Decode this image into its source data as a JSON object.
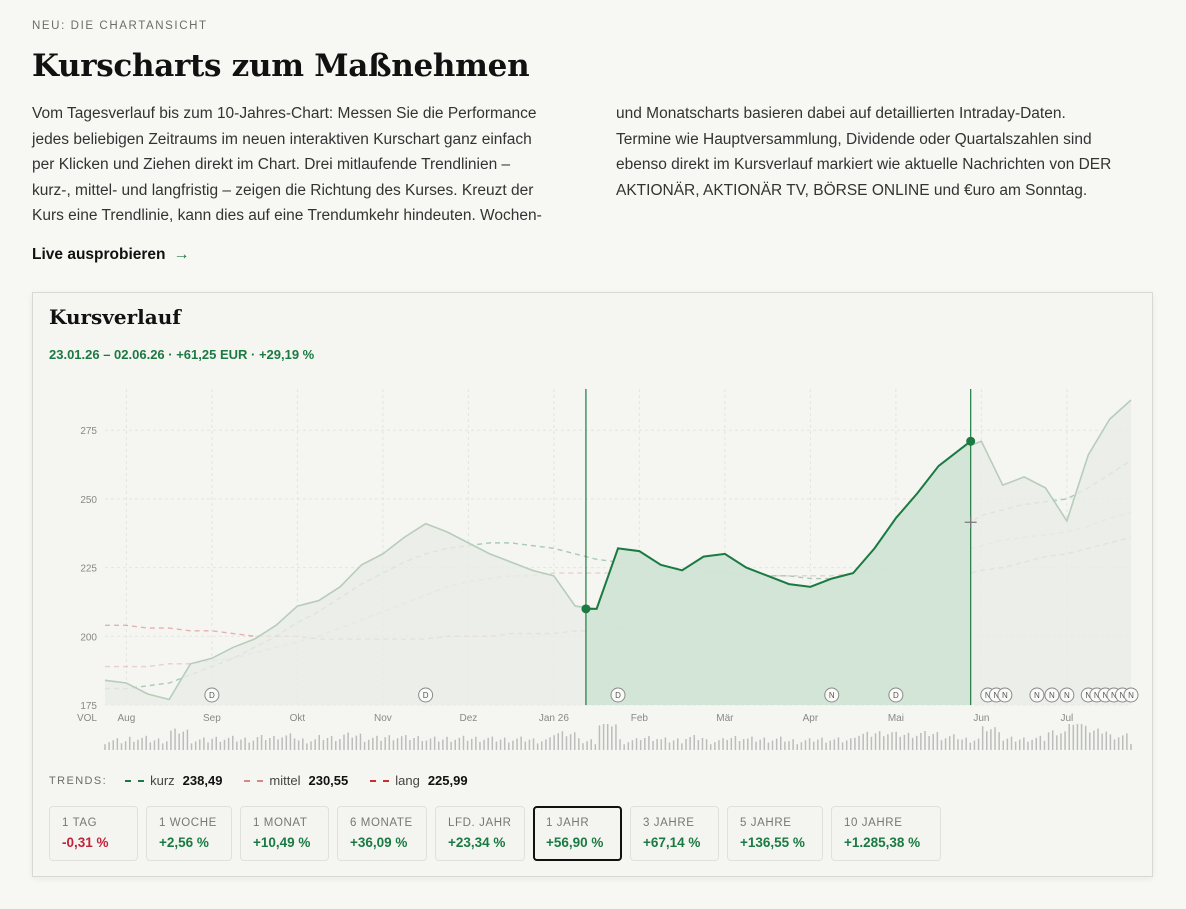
{
  "page": {
    "eyebrow": "NEU: DIE CHARTANSICHT",
    "headline": "Kurscharts zum Maßnehmen",
    "copy_col1": [
      "Vom Tagesverlauf bis zum 10-Jahres-Chart: Messen Sie die Performance",
      "jedes beliebigen Zeitraums im neuen interaktiven Kurschart ganz einfach",
      "per Klicken und Ziehen direkt im Chart. Drei mitlaufende Trendlinien –",
      "kurz-, mittel- und langfristig – zeigen die Richtung des Kurses. Kreuzt der",
      "Kurs eine Trendlinie, kann dies auf eine Trendumkehr hindeuten. Wochen-"
    ],
    "copy_col2": [
      "und Monatscharts basieren dabei auf detaillierten Intraday-Daten.",
      "Termine wie Hauptversammlung, Dividende oder Quartalszahlen sind",
      "ebenso direkt im Kursverlauf markiert wie aktuelle Nachrichten von DER",
      "AKTIONÄR, AKTIONÄR TV, BÖRSE ONLINE und €uro am Sonntag."
    ],
    "cta_label": "Live ausprobieren",
    "cta_icon": "arrow-right-icon"
  },
  "card": {
    "title": "Kursverlauf",
    "range_text": "23.01.26 – 02.06.26 · +61,25 EUR · +29,19 %"
  },
  "chart_data": {
    "type": "area",
    "title": "Kursverlauf",
    "y_ticks": [
      "175",
      "200",
      "225",
      "250",
      "275"
    ],
    "ylim": [
      175,
      290
    ],
    "x_month_labels": [
      "Aug",
      "Sep",
      "Okt",
      "Nov",
      "Dez",
      "Jan 26",
      "Feb",
      "Mär",
      "Apr",
      "Mai",
      "Jun",
      "Jul"
    ],
    "x_month_index": [
      1,
      5,
      9,
      13,
      17,
      21,
      25,
      29,
      33,
      37,
      41,
      45
    ],
    "volume_label": "VOL",
    "price_series": [
      {
        "name": "Kurs",
        "values": [
          184,
          183,
          179,
          177,
          190,
          192,
          196,
          199,
          204,
          211,
          213,
          218,
          226,
          230,
          236,
          241,
          238,
          234,
          230,
          227,
          224,
          222,
          211,
          210,
          232,
          231,
          226,
          224,
          229,
          230,
          225,
          222,
          219,
          218,
          221,
          223,
          232,
          243,
          252,
          262,
          268,
          271,
          255,
          258,
          254,
          242,
          266,
          279,
          286
        ]
      }
    ],
    "trend_series": [
      {
        "name": "kurz",
        "color": "#1b7a42",
        "values": [
          181,
          181,
          182,
          183,
          186,
          189,
          192,
          196,
          200,
          205,
          209,
          214,
          219,
          223,
          227,
          230,
          232,
          233,
          234,
          234,
          233,
          232,
          230,
          228,
          227,
          226,
          225,
          224,
          224,
          223,
          223,
          222,
          222,
          221,
          221,
          222,
          224,
          227,
          231,
          235,
          239,
          244,
          246,
          248,
          249,
          250,
          254,
          259,
          264
        ]
      },
      {
        "name": "mittel",
        "color": "#d08a8a",
        "values": [
          189,
          189,
          189,
          190,
          190,
          191,
          192,
          194,
          196,
          198,
          200,
          203,
          206,
          209,
          212,
          215,
          218,
          220,
          221,
          222,
          222,
          223,
          223,
          223,
          223,
          223,
          223,
          223,
          223,
          223,
          222,
          222,
          222,
          222,
          222,
          223,
          224,
          225,
          227,
          229,
          231,
          233,
          235,
          236,
          237,
          238,
          240,
          243,
          245
        ]
      },
      {
        "name": "lang",
        "color": "#c9302c",
        "values": [
          204,
          204,
          203,
          203,
          202,
          202,
          201,
          200,
          200,
          200,
          199,
          199,
          199,
          199,
          199,
          199,
          200,
          200,
          200,
          201,
          201,
          201,
          202,
          202,
          203,
          204,
          205,
          206,
          207,
          208,
          209,
          210,
          211,
          212,
          213,
          214,
          215,
          217,
          218,
          220,
          222,
          224,
          225,
          227,
          229,
          230,
          232,
          234,
          236
        ]
      }
    ],
    "selection": {
      "start_index": 22.5,
      "end_index": 40.5,
      "start_value": 210,
      "end_value": 271
    },
    "event_markers": [
      {
        "type": "D",
        "index": 5
      },
      {
        "type": "D",
        "index": 15
      },
      {
        "type": "D",
        "index": 24
      },
      {
        "type": "N",
        "index": 34
      },
      {
        "type": "D",
        "index": 37
      },
      {
        "type": "N",
        "index": 41.3
      },
      {
        "type": "N",
        "index": 41.7
      },
      {
        "type": "N",
        "index": 42.1
      },
      {
        "type": "N",
        "index": 43.6
      },
      {
        "type": "N",
        "index": 44.3
      },
      {
        "type": "N",
        "index": 45
      },
      {
        "type": "N",
        "index": 46
      },
      {
        "type": "N",
        "index": 46.4
      },
      {
        "type": "N",
        "index": 46.8
      },
      {
        "type": "N",
        "index": 47.2
      },
      {
        "type": "N",
        "index": 47.6
      },
      {
        "type": "N",
        "index": 48
      }
    ]
  },
  "trends": {
    "label": "TRENDS:",
    "items": [
      {
        "name": "kurz",
        "value": "238,49",
        "color": "#1b7a42"
      },
      {
        "name": "mittel",
        "value": "230,55",
        "color": "#d08a8a"
      },
      {
        "name": "lang",
        "value": "225,99",
        "color": "#c9302c"
      }
    ]
  },
  "periods": [
    {
      "label": "1 TAG",
      "value": "-0,31 %",
      "sign": "neg"
    },
    {
      "label": "1 WOCHE",
      "value": "+2,56 %",
      "sign": "pos"
    },
    {
      "label": "1 MONAT",
      "value": "+10,49 %",
      "sign": "pos"
    },
    {
      "label": "6 MONATE",
      "value": "+36,09 %",
      "sign": "pos"
    },
    {
      "label": "LFD. JAHR",
      "value": "+23,34 %",
      "sign": "pos"
    },
    {
      "label": "1 JAHR",
      "value": "+56,90 %",
      "sign": "pos",
      "active": true
    },
    {
      "label": "3 JAHRE",
      "value": "+67,14 %",
      "sign": "pos"
    },
    {
      "label": "5 JAHRE",
      "value": "+136,55 %",
      "sign": "pos"
    },
    {
      "label": "10 JAHRE",
      "value": "+1.285,38 %",
      "sign": "pos"
    }
  ],
  "colors": {
    "accent_green": "#1b7a42",
    "negative_red": "#c0233a"
  }
}
